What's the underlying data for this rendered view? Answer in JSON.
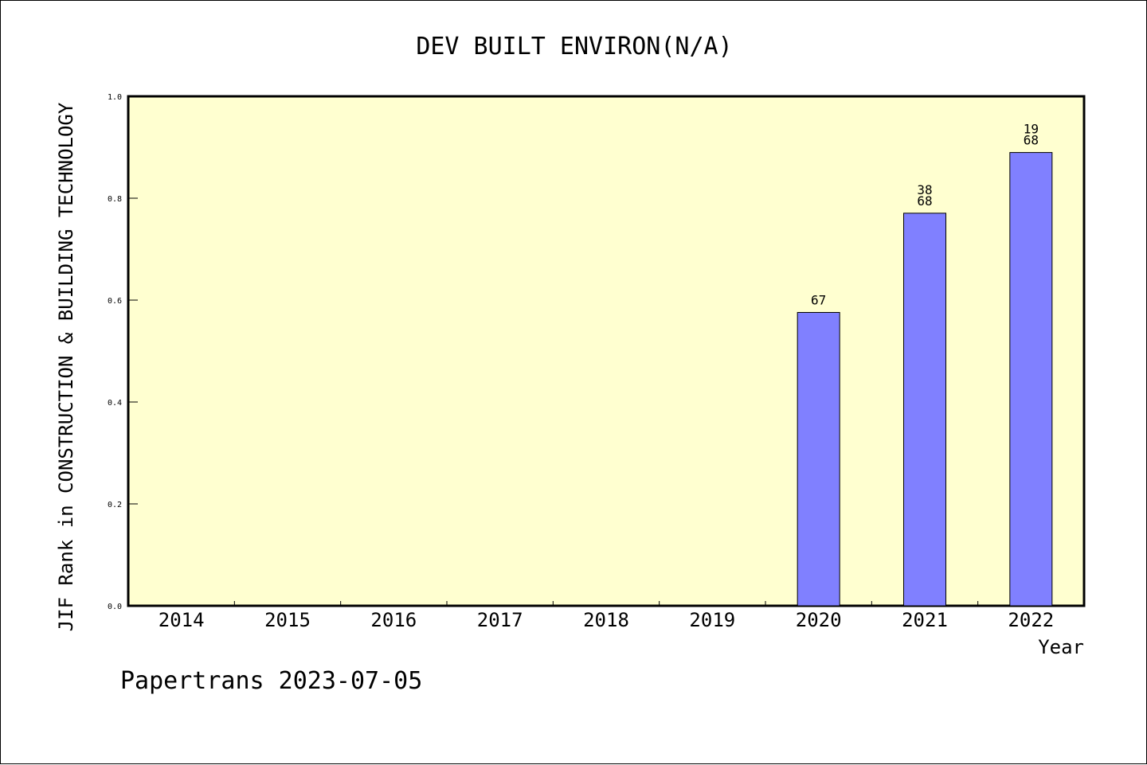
{
  "chart_data": {
    "type": "bar",
    "title": "DEV BUILT ENVIRON(N/A)",
    "xlabel": "Year",
    "ylabel": "JIF Rank in CONSTRUCTION & BUILDING TECHNOLOGY",
    "categories": [
      "2014",
      "2015",
      "2016",
      "2017",
      "2018",
      "2019",
      "2020",
      "2021",
      "2022"
    ],
    "values": [
      null,
      null,
      null,
      null,
      null,
      null,
      0.5758,
      0.7706,
      0.8897
    ],
    "bar_labels": [
      null,
      null,
      null,
      null,
      null,
      null,
      [
        "67"
      ],
      [
        "38",
        "68"
      ],
      [
        "19",
        "68"
      ]
    ],
    "ylim": [
      0,
      1.0
    ],
    "yticks": [
      "0.0",
      "0.2",
      "0.4",
      "0.6",
      "0.8",
      "1.0"
    ],
    "grid": false,
    "colors": {
      "plot_background": "#ffffd0",
      "bar_fill": "#8080ff",
      "bar_stroke": "#000000"
    }
  },
  "footer": {
    "text": "Papertrans 2023-07-05"
  }
}
